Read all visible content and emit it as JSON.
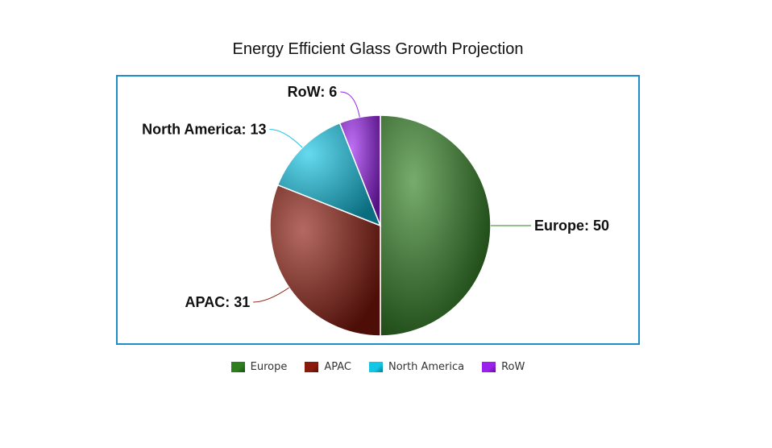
{
  "chart_data": {
    "type": "pie",
    "title": "Energy Efficient Glass Growth Projection",
    "slices": [
      {
        "label": "Europe",
        "value": 50,
        "color": "#2e7d1f"
      },
      {
        "label": "APAC",
        "value": 31,
        "color": "#8b1a0c"
      },
      {
        "label": "North America",
        "value": 13,
        "color": "#12c6e6"
      },
      {
        "label": "RoW",
        "value": 6,
        "color": "#9b21ee"
      }
    ],
    "data_labels": [
      "Europe: 50",
      "APAC: 31",
      "North America: 13",
      "RoW: 6"
    ],
    "legend_position": "bottom"
  },
  "legend": {
    "items": [
      {
        "label": "Europe",
        "color": "#2e7d1f"
      },
      {
        "label": "APAC",
        "color": "#8b1a0c"
      },
      {
        "label": "North America",
        "color": "#12c6e6"
      },
      {
        "label": "RoW",
        "color": "#9b21ee"
      }
    ]
  }
}
